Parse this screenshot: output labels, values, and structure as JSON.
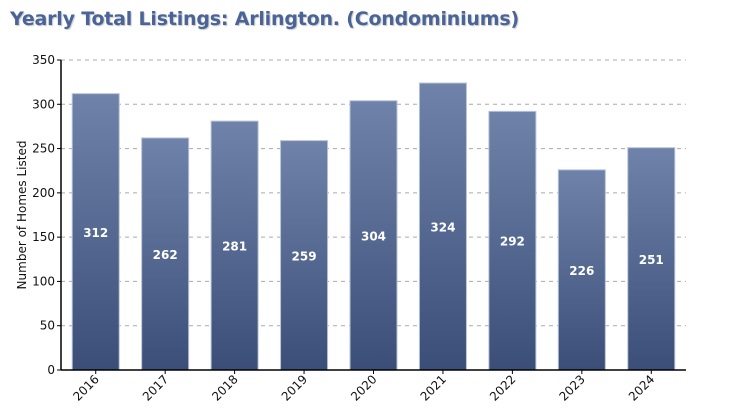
{
  "chart_data": {
    "type": "bar",
    "title": "Yearly Total Listings: Arlington. (Condominiums)",
    "xlabel": "",
    "ylabel": "Number of Homes Listed",
    "categories": [
      "2016",
      "2017",
      "2018",
      "2019",
      "2020",
      "2021",
      "2022",
      "2023",
      "2024"
    ],
    "values": [
      312,
      262,
      281,
      259,
      304,
      324,
      292,
      226,
      251
    ],
    "ylim": [
      0,
      350
    ],
    "yticks": [
      0,
      50,
      100,
      150,
      200,
      250,
      300,
      350
    ],
    "grid": "horizontal dashed",
    "bar_color_top": "#6f83aa",
    "bar_color_bottom": "#3b4e78",
    "title_color": "#4a6498"
  }
}
